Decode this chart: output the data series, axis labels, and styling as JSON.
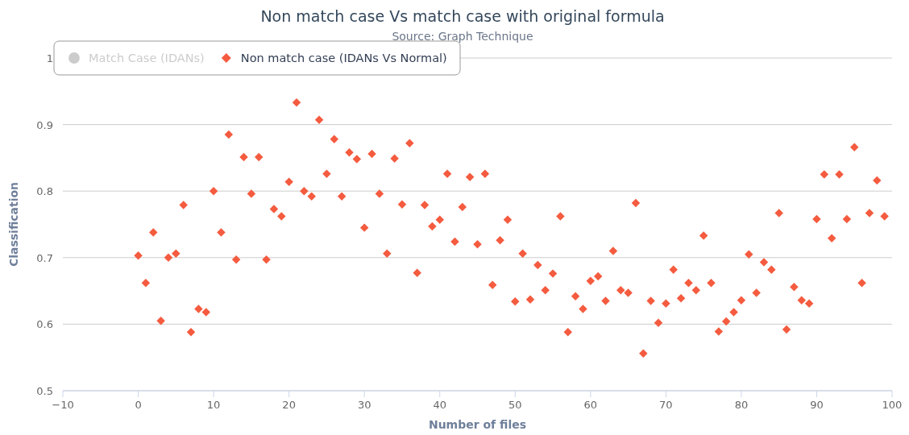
{
  "chart_data": {
    "type": "scatter",
    "title": "Non match case Vs match case with original formula",
    "subtitle": "Source: Graph Technique",
    "xlabel": "Number of files",
    "ylabel": "Classification",
    "xlim": [
      -10,
      100
    ],
    "xticks": [
      -10,
      0,
      10,
      20,
      30,
      40,
      50,
      60,
      70,
      80,
      90,
      100
    ],
    "ylim": [
      0.5,
      1
    ],
    "yticks": [
      0.5,
      0.6,
      0.7,
      0.8,
      0.9,
      1
    ],
    "grid": "y",
    "legend": "top left",
    "x": [
      0,
      1,
      2,
      3,
      4,
      5,
      6,
      7,
      8,
      9,
      10,
      11,
      12,
      13,
      14,
      15,
      16,
      17,
      18,
      19,
      20,
      21,
      22,
      23,
      24,
      25,
      26,
      27,
      28,
      29,
      30,
      31,
      32,
      33,
      34,
      35,
      36,
      37,
      38,
      39,
      40,
      41,
      42,
      43,
      44,
      45,
      46,
      47,
      48,
      49,
      50,
      51,
      52,
      53,
      54,
      55,
      56,
      57,
      58,
      59,
      60,
      61,
      62,
      63,
      64,
      65,
      66,
      67,
      68,
      69,
      70,
      71,
      72,
      73,
      74,
      75,
      76,
      77,
      78,
      79,
      80,
      81,
      82,
      83,
      84,
      85,
      86,
      87,
      88,
      89,
      90,
      91,
      92,
      93,
      94,
      95,
      96,
      97,
      98,
      99
    ],
    "series": [
      {
        "name": "Match Case (IDANs)",
        "color": "#cccccc",
        "marker": "circle",
        "values": [
          null,
          null,
          null,
          null,
          null,
          null,
          null,
          null,
          null,
          null,
          null,
          null,
          null,
          null,
          null,
          null,
          null,
          null,
          null,
          null,
          null,
          null,
          null,
          null,
          null,
          null,
          null,
          null,
          null,
          null,
          null,
          null,
          null,
          null,
          null,
          null,
          null,
          null,
          null,
          null,
          null,
          null,
          null,
          null,
          null,
          null,
          null,
          null,
          null,
          null,
          null,
          null,
          null,
          null,
          null,
          null,
          null,
          null,
          null,
          null,
          null,
          null,
          null,
          null,
          null,
          null,
          null,
          null,
          null,
          null,
          null,
          null,
          null,
          null,
          null,
          null,
          null,
          null,
          null,
          null,
          null,
          null,
          null,
          null,
          null,
          null,
          null,
          null,
          null,
          null,
          null,
          null,
          null,
          null,
          null,
          null,
          null,
          null,
          null,
          null
        ]
      },
      {
        "name": "Non match case (IDANs Vs Normal)",
        "color": "#f45b3f",
        "marker": "diamond",
        "values": [
          0.703,
          0.662,
          0.738,
          0.605,
          0.7,
          0.706,
          0.779,
          0.588,
          0.623,
          0.618,
          0.8,
          0.738,
          0.885,
          0.697,
          0.851,
          0.796,
          0.851,
          0.697,
          0.773,
          0.762,
          0.814,
          0.933,
          0.8,
          0.792,
          0.907,
          0.826,
          0.878,
          0.792,
          0.858,
          0.848,
          0.745,
          0.856,
          0.796,
          0.706,
          0.849,
          0.78,
          0.872,
          0.677,
          0.779,
          0.747,
          0.757,
          0.826,
          0.724,
          0.776,
          0.821,
          0.72,
          0.826,
          0.659,
          0.726,
          0.757,
          0.634,
          0.706,
          0.637,
          0.689,
          0.651,
          0.676,
          0.762,
          0.588,
          0.642,
          0.623,
          0.665,
          0.672,
          0.635,
          0.71,
          0.651,
          0.647,
          0.782,
          0.556,
          0.635,
          0.602,
          0.631,
          0.682,
          0.639,
          0.662,
          0.651,
          0.733,
          0.662,
          0.589,
          0.604,
          0.618,
          0.636,
          0.705,
          0.647,
          0.693,
          0.682,
          0.767,
          0.592,
          0.656,
          0.636,
          0.631,
          0.758,
          0.825,
          0.729,
          0.825,
          0.758,
          0.866,
          0.662,
          0.767,
          0.816,
          0.762
        ]
      }
    ]
  }
}
